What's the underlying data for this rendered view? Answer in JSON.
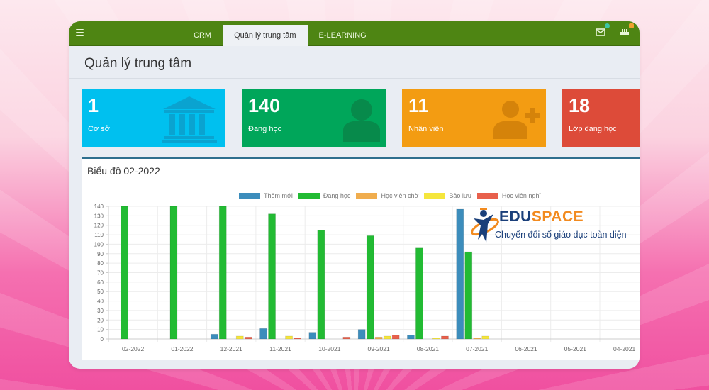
{
  "app": {
    "tabs": [
      {
        "label": "CRM",
        "active": false
      },
      {
        "label": "Quản lý trung tâm",
        "active": true
      },
      {
        "label": "E-LEARNING",
        "active": false
      }
    ],
    "top_icons": [
      {
        "name": "mail-icon",
        "badge_color": "#3ec6a4"
      },
      {
        "name": "factory-icon",
        "badge_color": "#f0a030"
      }
    ],
    "menu_icon": "hamburger-icon",
    "topbar_color": "#4e8513"
  },
  "page": {
    "title": "Quản lý trung tâm"
  },
  "cards": [
    {
      "value": "1",
      "label": "Cơ sở",
      "color": "#00c0ef",
      "icon": "institution-icon"
    },
    {
      "value": "140",
      "label": "Đang học",
      "color": "#00a65a",
      "icon": "user-icon"
    },
    {
      "value": "11",
      "label": "Nhân viên",
      "color": "#f39c12",
      "icon": "user-plus-icon"
    },
    {
      "value": "18",
      "label": "Lớp đang học",
      "color": "#dd4b39",
      "icon": "classes-icon"
    }
  ],
  "chart": {
    "title": "Biểu đồ 02-2022"
  },
  "chart_data": {
    "type": "bar",
    "title": "Biểu đồ 02-2022",
    "xlabel": "",
    "ylabel": "",
    "ylim": [
      0,
      140
    ],
    "yticks": [
      0,
      10,
      20,
      30,
      40,
      50,
      60,
      70,
      80,
      90,
      100,
      110,
      120,
      130,
      140
    ],
    "grid": true,
    "legend_position": "top",
    "categories": [
      "02-2022",
      "01-2022",
      "12-2021",
      "11-2021",
      "10-2021",
      "09-2021",
      "08-2021",
      "07-2021",
      "06-2021",
      "05-2021",
      "04-2021"
    ],
    "series": [
      {
        "name": "Thêm mới",
        "color": "#3c8dbc",
        "values": [
          0,
          0,
          5,
          11,
          7,
          10,
          4,
          137,
          0,
          0,
          0
        ]
      },
      {
        "name": "Đang học",
        "color": "#22bb33",
        "values": [
          140,
          140,
          140,
          132,
          115,
          109,
          96,
          92,
          0,
          0,
          0
        ]
      },
      {
        "name": "Học viên chờ",
        "color": "#f0ad4e",
        "values": [
          0,
          0,
          0,
          0,
          0,
          2,
          0,
          1,
          0,
          0,
          0
        ]
      },
      {
        "name": "Bảo lưu",
        "color": "#f5e63c",
        "values": [
          0,
          0,
          3,
          3,
          0,
          3,
          1,
          3,
          0,
          0,
          0
        ]
      },
      {
        "name": "Học viên nghỉ",
        "color": "#e8604c",
        "values": [
          0,
          0,
          2,
          1,
          2,
          4,
          3,
          0,
          0,
          0,
          0
        ]
      }
    ]
  },
  "brand": {
    "name_part1": "EDU",
    "name_part2": "SPACE",
    "tagline": "Chuyển đổi số giáo dục toàn diện"
  }
}
